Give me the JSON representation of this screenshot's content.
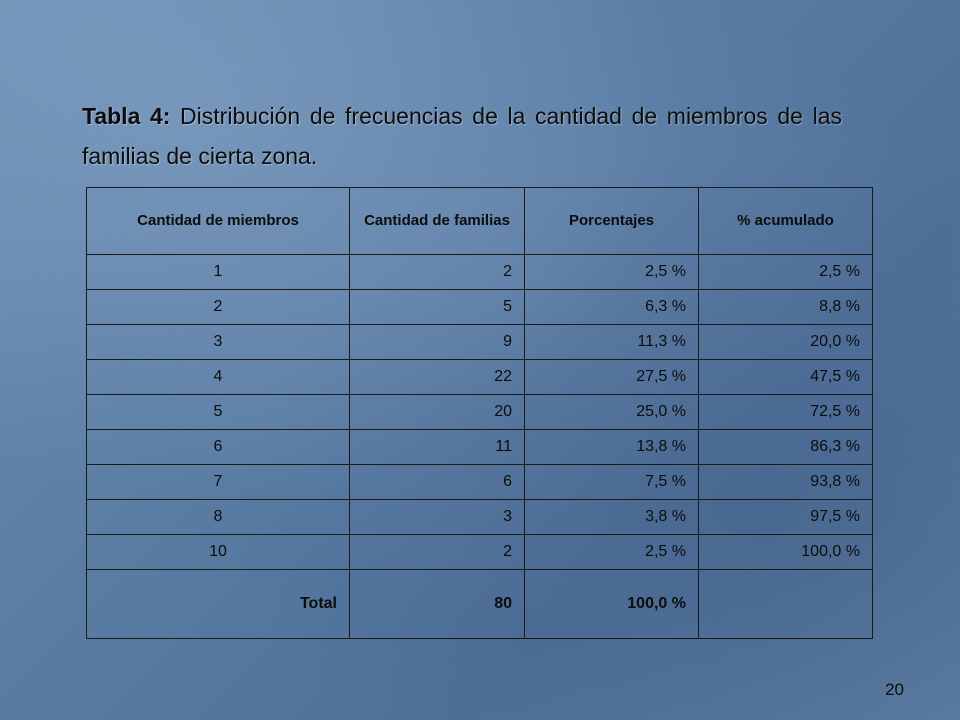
{
  "slide": {
    "title_lead": "Tabla 4:",
    "title_rest": " Distribución de frecuencias de la cantidad de miembros de las familias de cierta zona.",
    "page_number": "20"
  },
  "table": {
    "headers": [
      "Cantidad de miembros",
      "Cantidad de familias",
      "Porcentajes",
      "%  acumulado"
    ],
    "rows": [
      [
        "1",
        "2",
        "2,5 %",
        "2,5 %"
      ],
      [
        "2",
        "5",
        "6,3 %",
        "8,8 %"
      ],
      [
        "3",
        "9",
        "11,3 %",
        "20,0 %"
      ],
      [
        "4",
        "22",
        "27,5 %",
        "47,5 %"
      ],
      [
        "5",
        "20",
        "25,0 %",
        "72,5 %"
      ],
      [
        "6",
        "11",
        "13,8 %",
        "86,3 %"
      ],
      [
        "7",
        "6",
        "7,5 %",
        "93,8 %"
      ],
      [
        "8",
        "3",
        "3,8 %",
        "97,5 %"
      ],
      [
        "10",
        "2",
        "2,5 %",
        "100,0 %"
      ]
    ],
    "total": [
      "Total",
      "80",
      "100,0 %",
      ""
    ]
  }
}
